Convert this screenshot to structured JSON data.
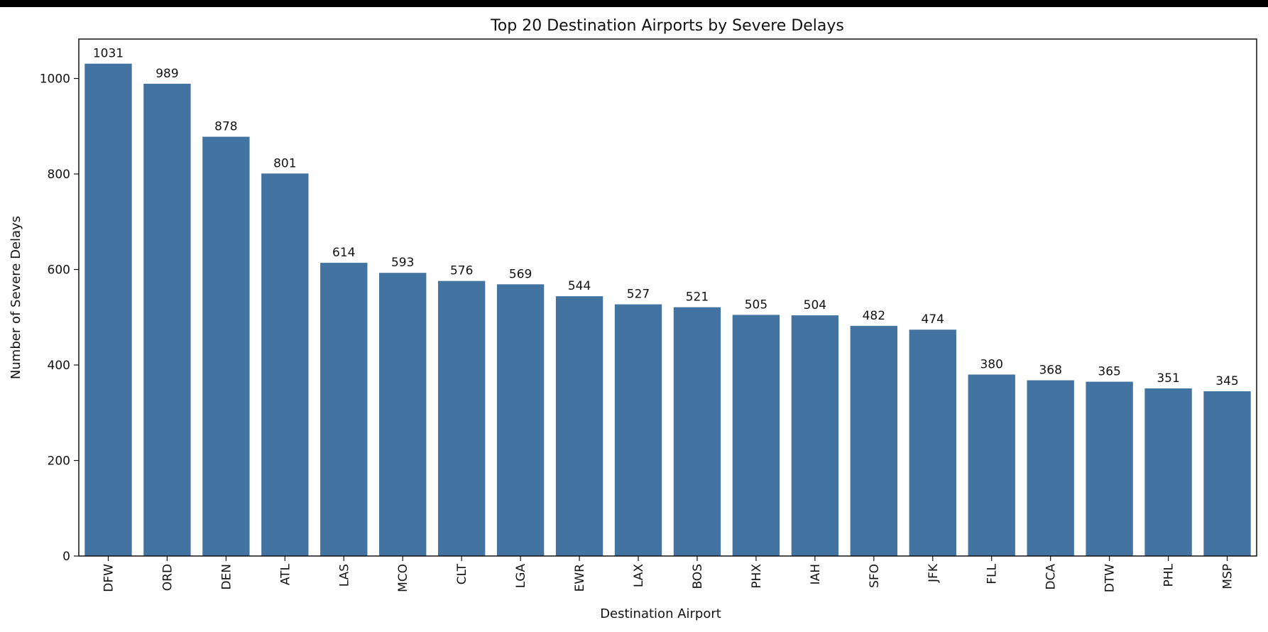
{
  "chart_data": {
    "type": "bar",
    "title": "Top 20 Destination Airports by Severe Delays",
    "xlabel": "Destination Airport",
    "ylabel": "Number of Severe Delays",
    "categories": [
      "DFW",
      "ORD",
      "DEN",
      "ATL",
      "LAS",
      "MCO",
      "CLT",
      "LGA",
      "EWR",
      "LAX",
      "BOS",
      "PHX",
      "IAH",
      "SFO",
      "JFK",
      "FLL",
      "DCA",
      "DTW",
      "PHL",
      "MSP"
    ],
    "values": [
      1031,
      989,
      878,
      801,
      614,
      593,
      576,
      569,
      544,
      527,
      521,
      505,
      504,
      482,
      474,
      380,
      368,
      365,
      351,
      345
    ],
    "data_labels": [
      "1031",
      "989",
      "878",
      "801",
      "614",
      "593",
      "576",
      "569",
      "544",
      "527",
      "521",
      "505",
      "504",
      "482",
      "474",
      "380",
      "368",
      "365",
      "351",
      "345"
    ],
    "yticks": [
      0,
      200,
      400,
      600,
      800,
      1000
    ],
    "ytick_labels": [
      "0",
      "200",
      "400",
      "600",
      "800",
      "1000"
    ],
    "ylim": [
      0,
      1082.55
    ],
    "grid": false,
    "legend": "none",
    "bar_color": "#4373a0",
    "x_tick_rotation": "vertical"
  }
}
